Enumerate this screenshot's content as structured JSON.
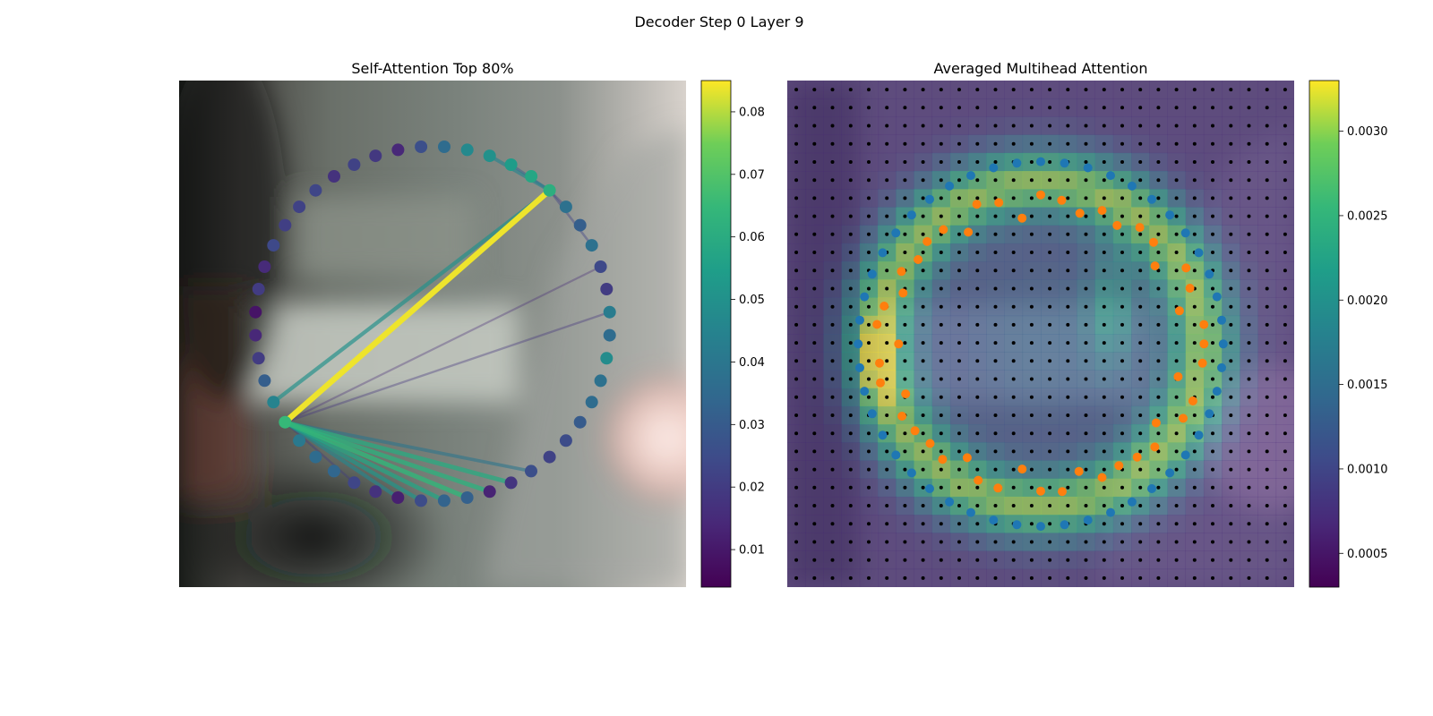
{
  "figure": {
    "suptitle": "Decoder Step 0 Layer 9"
  },
  "chart_data": [
    {
      "type": "scatter",
      "title": "Self-Attention Top 80%",
      "xlabel": "",
      "ylabel": "",
      "description_points": "polygon vertices arranged on a circle; colored by attention value",
      "center": [
        0.5,
        0.48
      ],
      "radius": 0.35,
      "points": [
        {
          "v": 0.061
        },
        {
          "v": 0.038
        },
        {
          "v": 0.031
        },
        {
          "v": 0.038
        },
        {
          "v": 0.024
        },
        {
          "v": 0.02
        },
        {
          "v": 0.042
        },
        {
          "v": 0.036
        },
        {
          "v": 0.048
        },
        {
          "v": 0.038
        },
        {
          "v": 0.036
        },
        {
          "v": 0.03
        },
        {
          "v": 0.025
        },
        {
          "v": 0.022
        },
        {
          "v": 0.026
        },
        {
          "v": 0.018
        },
        {
          "v": 0.013
        },
        {
          "v": 0.032
        },
        {
          "v": 0.033
        },
        {
          "v": 0.025
        },
        {
          "v": 0.012
        },
        {
          "v": 0.017
        },
        {
          "v": 0.023
        },
        {
          "v": 0.034
        },
        {
          "v": 0.036
        },
        {
          "v": 0.041
        },
        {
          "v": 0.065
        },
        {
          "v": 0.045
        },
        {
          "v": 0.031
        },
        {
          "v": 0.02
        },
        {
          "v": 0.014
        },
        {
          "v": 0.009
        },
        {
          "v": 0.02
        },
        {
          "v": 0.015
        },
        {
          "v": 0.024
        },
        {
          "v": 0.021
        },
        {
          "v": 0.022
        },
        {
          "v": 0.023
        },
        {
          "v": 0.017
        },
        {
          "v": 0.022
        },
        {
          "v": 0.019
        },
        {
          "v": 0.014
        },
        {
          "v": 0.026
        },
        {
          "v": 0.036
        },
        {
          "v": 0.047
        },
        {
          "v": 0.05
        },
        {
          "v": 0.054
        },
        {
          "v": 0.058
        }
      ],
      "edges": [
        {
          "from": 0,
          "to": 26,
          "v": 0.084
        },
        {
          "from": 0,
          "to": 27,
          "v": 0.05
        },
        {
          "from": 0,
          "to": 45,
          "v": 0.045
        },
        {
          "from": 0,
          "to": 3,
          "v": 0.022
        },
        {
          "from": 0,
          "to": 46,
          "v": 0.03
        },
        {
          "from": 0,
          "to": 1,
          "v": 0.02
        },
        {
          "from": 26,
          "to": 14,
          "v": 0.04
        },
        {
          "from": 26,
          "to": 15,
          "v": 0.06
        },
        {
          "from": 26,
          "to": 16,
          "v": 0.062
        },
        {
          "from": 26,
          "to": 17,
          "v": 0.064
        },
        {
          "from": 26,
          "to": 18,
          "v": 0.058
        },
        {
          "from": 26,
          "to": 19,
          "v": 0.052
        },
        {
          "from": 26,
          "to": 20,
          "v": 0.046
        },
        {
          "from": 26,
          "to": 22,
          "v": 0.02
        },
        {
          "from": 26,
          "to": 4,
          "v": 0.015
        },
        {
          "from": 26,
          "to": 6,
          "v": 0.018
        }
      ],
      "colorbar": {
        "min": 0.004,
        "max": 0.085,
        "ticks": [
          0.01,
          0.02,
          0.03,
          0.04,
          0.05,
          0.06,
          0.07,
          0.08
        ],
        "tick_labels": [
          "0.01",
          "0.02",
          "0.03",
          "0.04",
          "0.05",
          "0.06",
          "0.07",
          "0.08"
        ],
        "colormap": "viridis"
      }
    },
    {
      "type": "heatmap",
      "title": "Averaged Multihead Attention",
      "xlabel": "",
      "ylabel": "",
      "grid_size": 28,
      "heat_ring_center": [
        0.5,
        0.52
      ],
      "heat_ring_radius": 0.32,
      "blue_points_count": 48,
      "blue_ring_radius": 0.36,
      "blue_color": "#1f77b4",
      "orange_points_count": 48,
      "orange_ring_radius": 0.31,
      "orange_color": "#ff7f0e",
      "dot_color": "#000000",
      "colorbar": {
        "min": 0.0003,
        "max": 0.0033,
        "ticks": [
          0.0005,
          0.001,
          0.0015,
          0.002,
          0.0025,
          0.003
        ],
        "tick_labels": [
          "0.0005",
          "0.0010",
          "0.0015",
          "0.0020",
          "0.0025",
          "0.0030"
        ],
        "colormap": "viridis"
      }
    }
  ]
}
